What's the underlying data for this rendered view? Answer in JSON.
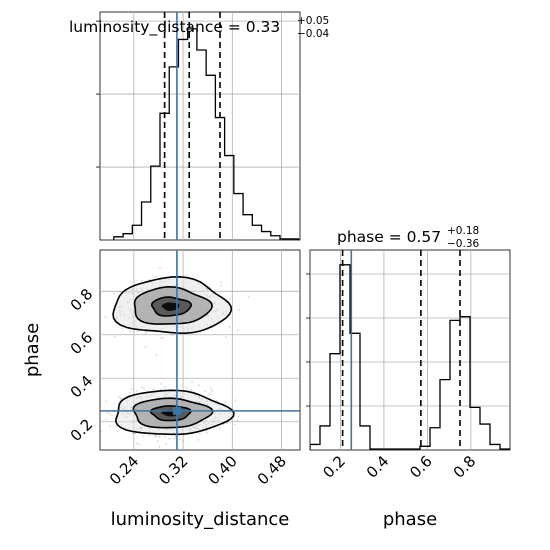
{
  "chart_data": {
    "type": "corner",
    "parameters": [
      "luminosity_distance",
      "phase"
    ],
    "truths": {
      "luminosity_distance": 0.31,
      "phase": 0.25
    },
    "colors": {
      "truth": "#3a75a8",
      "hist": "#000000",
      "grid": "#b0b0b0",
      "points": "#8a8a8a"
    },
    "luminosity_distance": {
      "title": "luminosity_distance = 0.33",
      "title_sup": "+0.05",
      "title_sub": "−0.04",
      "xlabel": "luminosity_distance",
      "xlim": [
        0.185,
        0.51
      ],
      "xticks": [
        0.24,
        0.32,
        0.4,
        0.48
      ],
      "xtick_labels": [
        "0.24",
        "0.32",
        "0.40",
        "0.48"
      ],
      "quantiles": [
        0.29,
        0.33,
        0.38
      ],
      "hist_bins": [
        0.2075,
        0.2225,
        0.2375,
        0.2525,
        0.2675,
        0.2825,
        0.2975,
        0.3125,
        0.3275,
        0.3425,
        0.3575,
        0.3725,
        0.3875,
        0.4025,
        0.4175,
        0.4325,
        0.4475,
        0.4625,
        0.4775,
        0.4925,
        0.5075
      ],
      "hist_counts": [
        1.5,
        3,
        7,
        18,
        35,
        60,
        82,
        95,
        100,
        90,
        78,
        58,
        40,
        22,
        12,
        7,
        4,
        2,
        0.5,
        0.5
      ],
      "hist_ymax": 108
    },
    "phase": {
      "title": "phase = 0.57",
      "title_sup": "+0.18",
      "title_sub": "−0.36",
      "xlabel": "phase",
      "ylabel": "phase",
      "xlim": [
        0.06,
        0.98
      ],
      "ylim": [
        0.07,
        0.99
      ],
      "xticks": [
        0.2,
        0.4,
        0.6,
        0.8
      ],
      "xtick_labels": [
        "0.2",
        "0.4",
        "0.6",
        "0.8"
      ],
      "yticks": [
        0.2,
        0.4,
        0.6,
        0.8
      ],
      "ytick_labels": [
        "0.2",
        "0.4",
        "0.6",
        "0.8"
      ],
      "quantiles": [
        0.21,
        0.57,
        0.75
      ],
      "hist_bins": [
        0.06,
        0.106,
        0.152,
        0.198,
        0.244,
        0.29,
        0.336,
        0.382,
        0.428,
        0.474,
        0.52,
        0.566,
        0.612,
        0.658,
        0.704,
        0.75,
        0.796,
        0.842,
        0.888,
        0.934,
        0.98
      ],
      "hist_counts": [
        3,
        13,
        52,
        100,
        63,
        13,
        0.5,
        0.5,
        0.5,
        0.5,
        0.5,
        2,
        12,
        38,
        70,
        72,
        23,
        14,
        3,
        0.5
      ],
      "hist_ymax": 108
    },
    "hist2d": {
      "modes": [
        {
          "x": 0.3,
          "y": 0.73,
          "sx": 0.032,
          "sy": 0.05,
          "weight": 0.5
        },
        {
          "x": 0.3,
          "y": 0.24,
          "sx": 0.032,
          "sy": 0.045,
          "weight": 0.5
        }
      ],
      "levels": [
        0.39,
        0.86,
        0.99
      ]
    }
  }
}
